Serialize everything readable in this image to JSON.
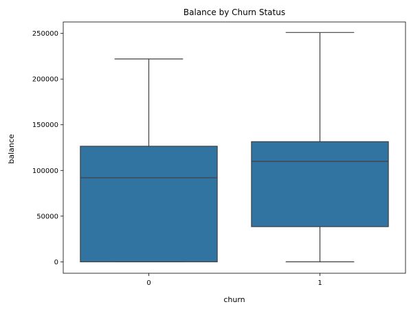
{
  "chart_data": {
    "type": "box",
    "title": "Balance by Churn Status",
    "xlabel": "churn",
    "ylabel": "balance",
    "categories": [
      "0",
      "1"
    ],
    "boxes": [
      {
        "category": "0",
        "whisker_low": 0,
        "q1": 0,
        "median": 92000,
        "q3": 126500,
        "whisker_high": 222000
      },
      {
        "category": "1",
        "whisker_low": 0,
        "q1": 38500,
        "median": 110000,
        "q3": 131500,
        "whisker_high": 251000
      }
    ],
    "ylim": [
      -12500,
      262500
    ],
    "yticks": [
      0,
      50000,
      100000,
      150000,
      200000,
      250000
    ],
    "ytick_labels": [
      "0",
      "50000",
      "100000",
      "150000",
      "200000",
      "250000"
    ],
    "grid": false,
    "colors": {
      "box_fill": "#3274a1",
      "line": "#3f3f3f",
      "axis": "#000000"
    }
  }
}
